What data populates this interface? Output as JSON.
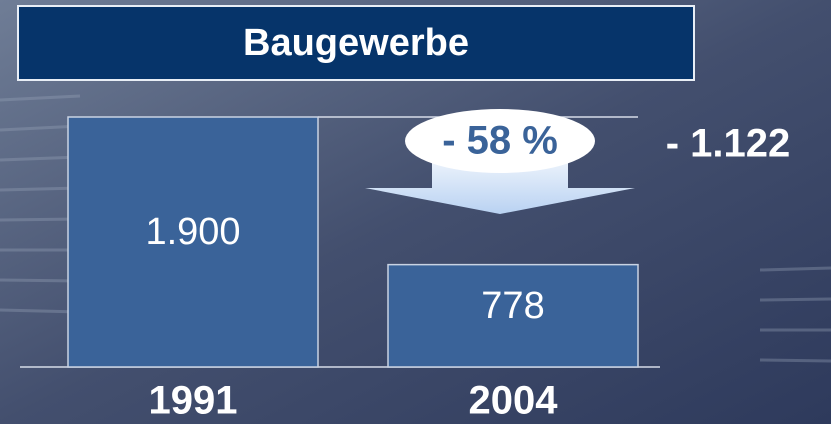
{
  "chart_data": {
    "type": "bar",
    "title": "Baugewerbe",
    "categories": [
      "1991",
      "2004"
    ],
    "values": [
      1900,
      778
    ],
    "value_labels": [
      "1.900",
      "778"
    ],
    "annotations": [
      "- 58 %",
      "- 1.122"
    ],
    "color": "#3a6399"
  }
}
